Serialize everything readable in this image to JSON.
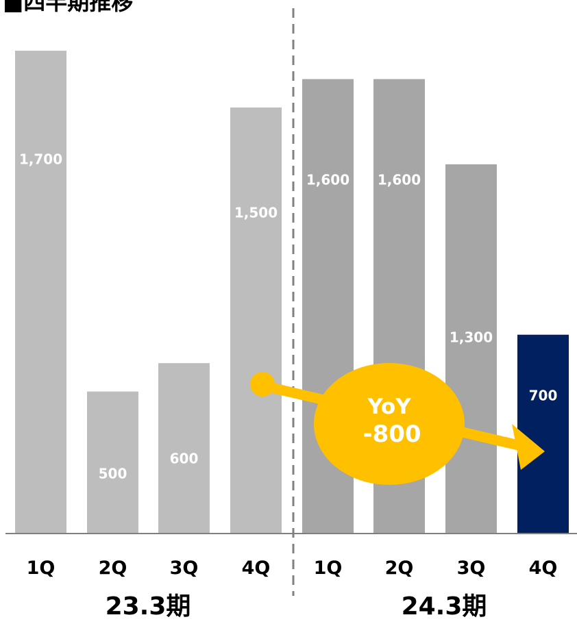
{
  "chart_data": {
    "type": "bar",
    "title": "■四半期推移",
    "groups": [
      {
        "label": "23.3期",
        "categories": [
          "1Q",
          "2Q",
          "3Q",
          "4Q"
        ],
        "values": [
          1700,
          500,
          600,
          1500
        ],
        "value_labels": [
          "1,700",
          "500",
          "600",
          "1,500"
        ],
        "colors": [
          "#bdbdbd",
          "#bdbdbd",
          "#bdbdbd",
          "#bdbdbd"
        ]
      },
      {
        "label": "24.3期",
        "categories": [
          "1Q",
          "2Q",
          "3Q",
          "4Q"
        ],
        "values": [
          1600,
          1600,
          1300,
          700
        ],
        "value_labels": [
          "1,600",
          "1,600",
          "1,300",
          "700"
        ],
        "colors": [
          "#a6a6a6",
          "#a6a6a6",
          "#a6a6a6",
          "#002060"
        ]
      }
    ],
    "ylim": [
      0,
      1700
    ],
    "grid": false,
    "divider": "dashed",
    "annotation": {
      "line1": "YoY",
      "line2": "-800",
      "color": "#ffc000"
    }
  }
}
